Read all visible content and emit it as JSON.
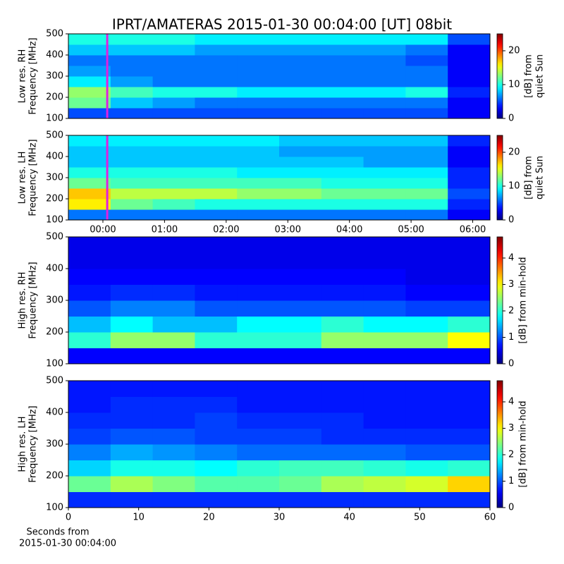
{
  "chart_data": [
    {
      "type": "heatmap",
      "title": "IPRT/AMATERAS 2015-01-30 00:04:00 [UT]   08bit",
      "ylabel": [
        "Low res. RH",
        "Frequency [MHz]"
      ],
      "colorbar_label": [
        "[dB] from",
        "quiet Sun"
      ],
      "colormap": "jet",
      "xlim": [
        -0.56,
        6.28
      ],
      "ylim": [
        100,
        500
      ],
      "yticks": [
        100,
        200,
        300,
        400,
        500
      ],
      "clim": [
        0,
        25
      ],
      "cticks": [
        0,
        10,
        20
      ],
      "marker_x": 0.07,
      "marker_color": "#e020e0",
      "x_bins": [
        -0.56,
        0.124,
        0.808,
        1.492,
        2.176,
        2.86,
        3.544,
        4.228,
        4.912,
        5.596,
        6.28
      ],
      "y_bins": [
        100,
        150,
        200,
        250,
        300,
        350,
        400,
        450,
        500
      ],
      "z": [
        [
          5,
          5,
          5,
          5,
          5,
          5,
          5,
          5,
          5,
          3
        ],
        [
          12,
          8,
          7,
          6,
          6,
          6,
          6,
          6,
          6,
          3
        ],
        [
          13,
          11,
          10,
          10,
          9,
          9,
          9,
          9,
          10,
          4
        ],
        [
          9,
          7,
          6,
          6,
          6,
          6,
          6,
          6,
          6,
          3
        ],
        [
          7,
          6,
          6,
          6,
          6,
          6,
          6,
          6,
          6,
          3
        ],
        [
          6,
          6,
          6,
          6,
          6,
          6,
          6,
          6,
          5,
          3
        ],
        [
          8,
          8,
          8,
          7,
          7,
          7,
          7,
          7,
          6,
          3
        ],
        [
          10,
          10,
          10,
          9,
          9,
          9,
          9,
          9,
          9,
          5
        ]
      ]
    },
    {
      "type": "heatmap",
      "ylabel": [
        "Low res. LH",
        "Frequency [MHz]"
      ],
      "colorbar_label": [
        "[dB] from",
        "quiet Sun"
      ],
      "colormap": "jet",
      "xlim": [
        -0.56,
        6.28
      ],
      "ylim": [
        100,
        500
      ],
      "yticks": [
        100,
        200,
        300,
        400,
        500
      ],
      "xticks": [
        {
          "value": 0,
          "label": "00:00"
        },
        {
          "value": 1,
          "label": "01:00"
        },
        {
          "value": 2,
          "label": "02:00"
        },
        {
          "value": 3,
          "label": "03:00"
        },
        {
          "value": 4,
          "label": "04:00"
        },
        {
          "value": 5,
          "label": "05:00"
        },
        {
          "value": 6,
          "label": "06:00"
        }
      ],
      "clim": [
        0,
        25
      ],
      "cticks": [
        0,
        10,
        20
      ],
      "marker_x": 0.07,
      "marker_color": "#e020e0",
      "x_bins": [
        -0.56,
        0.124,
        0.808,
        1.492,
        2.176,
        2.86,
        3.544,
        4.228,
        4.912,
        5.596,
        6.28
      ],
      "y_bins": [
        100,
        150,
        200,
        250,
        300,
        350,
        400,
        450,
        500
      ],
      "z": [
        [
          6,
          6,
          6,
          6,
          6,
          6,
          6,
          6,
          6,
          3
        ],
        [
          16,
          12,
          11,
          10,
          10,
          10,
          10,
          10,
          10,
          4
        ],
        [
          17,
          14,
          14,
          14,
          13,
          13,
          12,
          12,
          12,
          5
        ],
        [
          12,
          11,
          11,
          11,
          11,
          11,
          10,
          10,
          10,
          4
        ],
        [
          10,
          10,
          10,
          10,
          9,
          9,
          9,
          9,
          9,
          4
        ],
        [
          8,
          8,
          8,
          8,
          8,
          8,
          8,
          7,
          7,
          3
        ],
        [
          8,
          8,
          8,
          8,
          8,
          7,
          7,
          7,
          7,
          3
        ],
        [
          9,
          9,
          9,
          9,
          9,
          8,
          8,
          8,
          8,
          4
        ]
      ]
    },
    {
      "type": "heatmap",
      "ylabel": [
        "High res. RH",
        "Frequency [MHz]"
      ],
      "colorbar_label": [
        "[dB] from min-hold"
      ],
      "colormap": "jet",
      "xlim": [
        0,
        60
      ],
      "ylim": [
        100,
        500
      ],
      "yticks": [
        100,
        200,
        300,
        400,
        500
      ],
      "clim": [
        0,
        4.8
      ],
      "cticks": [
        0,
        1,
        2,
        3,
        4
      ],
      "x_bins": [
        0,
        6,
        12,
        18,
        24,
        30,
        36,
        42,
        48,
        54,
        60
      ],
      "y_bins": [
        100,
        150,
        200,
        250,
        300,
        350,
        400,
        450,
        500
      ],
      "z": [
        [
          0.6,
          0.6,
          0.6,
          0.6,
          0.6,
          0.6,
          0.6,
          0.6,
          0.6,
          0.6
        ],
        [
          2.0,
          2.5,
          2.5,
          2.0,
          2.0,
          2.0,
          2.5,
          2.5,
          2.5,
          3.0
        ],
        [
          1.5,
          1.8,
          1.5,
          1.5,
          1.8,
          1.8,
          2.0,
          1.8,
          1.8,
          2.0
        ],
        [
          1.0,
          1.2,
          1.2,
          1.0,
          1.0,
          1.0,
          1.0,
          1.0,
          0.9,
          0.9
        ],
        [
          0.7,
          0.8,
          0.8,
          0.7,
          0.7,
          0.7,
          0.7,
          0.7,
          0.6,
          0.6
        ],
        [
          0.6,
          0.6,
          0.6,
          0.6,
          0.6,
          0.6,
          0.6,
          0.6,
          0.5,
          0.5
        ],
        [
          0.5,
          0.5,
          0.5,
          0.5,
          0.5,
          0.5,
          0.5,
          0.5,
          0.5,
          0.5
        ],
        [
          0.5,
          0.5,
          0.5,
          0.5,
          0.5,
          0.5,
          0.5,
          0.5,
          0.5,
          0.5
        ]
      ]
    },
    {
      "type": "heatmap",
      "ylabel": [
        "High res. LH",
        "Frequency [MHz]"
      ],
      "colorbar_label": [
        "[dB] from min-hold"
      ],
      "xlabel": [
        "Seconds from",
        "2015-01-30 00:04:00"
      ],
      "colormap": "jet",
      "xlim": [
        0,
        60
      ],
      "ylim": [
        100,
        500
      ],
      "yticks": [
        100,
        200,
        300,
        400,
        500
      ],
      "xticks": [
        0,
        10,
        20,
        30,
        40,
        50,
        60
      ],
      "clim": [
        0,
        4.8
      ],
      "cticks": [
        0,
        1,
        2,
        3,
        4
      ],
      "x_bins": [
        0,
        6,
        12,
        18,
        24,
        30,
        36,
        42,
        48,
        54,
        60
      ],
      "y_bins": [
        100,
        150,
        200,
        250,
        300,
        350,
        400,
        450,
        500
      ],
      "z": [
        [
          0.8,
          0.8,
          0.8,
          0.8,
          0.8,
          0.8,
          0.8,
          0.8,
          0.8,
          0.8
        ],
        [
          2.3,
          2.6,
          2.4,
          2.2,
          2.2,
          2.3,
          2.6,
          2.7,
          2.8,
          3.2
        ],
        [
          1.6,
          1.9,
          1.9,
          1.8,
          2.0,
          2.1,
          2.1,
          2.0,
          1.9,
          2.0
        ],
        [
          1.2,
          1.4,
          1.3,
          1.2,
          1.1,
          1.1,
          1.1,
          1.1,
          1.0,
          1.0
        ],
        [
          0.9,
          1.0,
          1.0,
          0.9,
          0.9,
          0.9,
          0.8,
          0.8,
          0.8,
          0.8
        ],
        [
          0.8,
          0.8,
          0.8,
          0.9,
          0.8,
          0.8,
          0.8,
          0.7,
          0.7,
          0.7
        ],
        [
          0.7,
          0.8,
          0.8,
          0.8,
          0.7,
          0.7,
          0.7,
          0.7,
          0.7,
          0.7
        ],
        [
          0.7,
          0.7,
          0.7,
          0.7,
          0.7,
          0.7,
          0.7,
          0.7,
          0.7,
          0.7
        ]
      ]
    }
  ]
}
